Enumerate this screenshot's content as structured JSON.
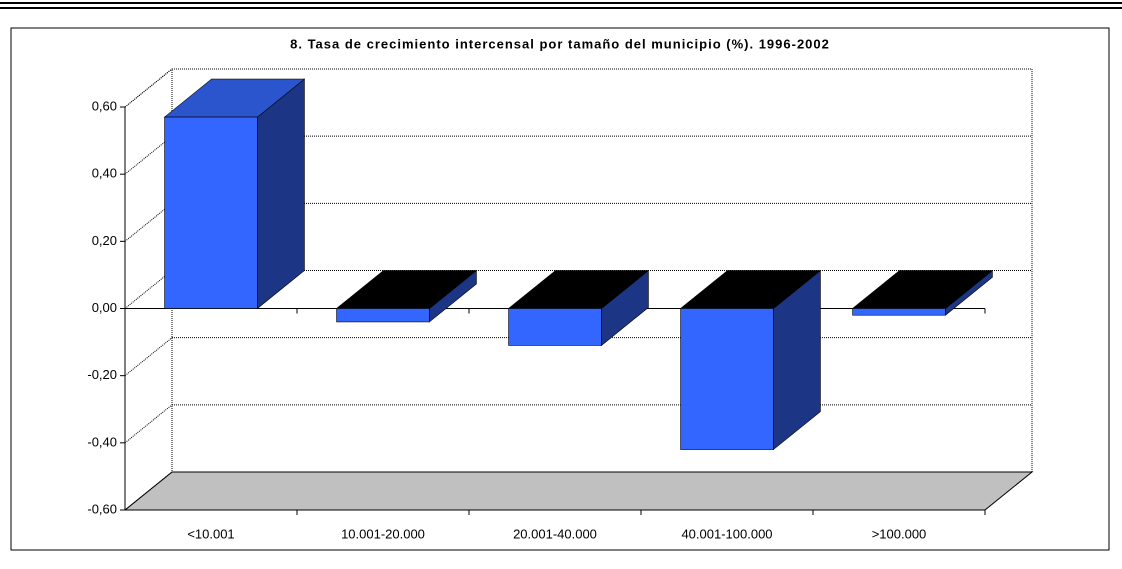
{
  "chart_data": {
    "type": "bar3d",
    "title": "8. Tasa de crecimiento intercensal por tamaño del municipio (%). 1996-2002",
    "categories": [
      "<10.001",
      "10.001-20.000",
      "20.001-40.000",
      "40.001-100.000",
      ">100.000"
    ],
    "values": [
      0.57,
      -0.04,
      -0.11,
      -0.42,
      -0.02
    ],
    "color": "#3366ff",
    "ylim": [
      -0.6,
      0.6
    ],
    "yticks": [
      {
        "value": -0.6,
        "label": "-0,60"
      },
      {
        "value": -0.4,
        "label": "-0,40"
      },
      {
        "value": -0.2,
        "label": "-0,20"
      },
      {
        "value": 0,
        "label": "0,00"
      },
      {
        "value": 0.2,
        "label": "0,20"
      },
      {
        "value": 0.4,
        "label": "0,40"
      },
      {
        "value": 0.6,
        "label": "0,60"
      }
    ],
    "grid": true
  }
}
